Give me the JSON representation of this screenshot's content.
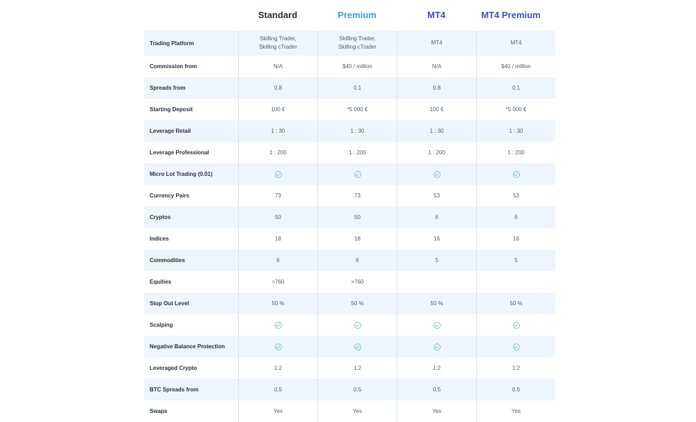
{
  "columns": [
    {
      "label": "Standard",
      "color": "#2b2f3a"
    },
    {
      "label": "Premium",
      "color": "#3a9fd6"
    },
    {
      "label": "MT4",
      "color": "#3b4fc4"
    },
    {
      "label": "MT4 Premium",
      "color": "#3b4fc4"
    }
  ],
  "rows": [
    {
      "label": "Trading Platform",
      "values": [
        "Skilling Trader, Skilling cTrader",
        "Skilling Trader, Skilling cTrader",
        "MT4",
        "MT4"
      ]
    },
    {
      "label": "Commission from",
      "values": [
        "N/A",
        "$40 / million",
        "N/A",
        "$40 / million"
      ]
    },
    {
      "label": "Spreads from",
      "values": [
        "0.8",
        "0.1",
        "0.8",
        "0.1"
      ]
    },
    {
      "label": "Starting Deposit",
      "values": [
        "100 €",
        "*5 000 €",
        "100 €",
        "*5 000 €"
      ]
    },
    {
      "label": "Leverage Retail",
      "values": [
        "1 : 30",
        "1 : 30",
        "1 : 30",
        "1 : 30"
      ]
    },
    {
      "label": "Leverage Professional",
      "values": [
        "1 : 200",
        "1 : 200",
        "1 : 200",
        "1 : 200"
      ]
    },
    {
      "label": "Micro Lot Trading (0.01)",
      "check": [
        true,
        true,
        true,
        true
      ]
    },
    {
      "label": "Currency Pairs",
      "values": [
        "73",
        "73",
        "53",
        "53"
      ]
    },
    {
      "label": "Cryptos",
      "values": [
        "50",
        "50",
        "6",
        "6"
      ]
    },
    {
      "label": "Indices",
      "values": [
        "18",
        "18",
        "16",
        "16"
      ]
    },
    {
      "label": "Commodities",
      "values": [
        "6",
        "6",
        "5",
        "5"
      ]
    },
    {
      "label": "Equities",
      "values": [
        ">760",
        ">760",
        "",
        ""
      ]
    },
    {
      "label": "Stop Out Level",
      "values": [
        "50 %",
        "50 %",
        "50 %",
        "50 %"
      ]
    },
    {
      "label": "Scalping",
      "check": [
        true,
        true,
        true,
        true
      ]
    },
    {
      "label": "Negative Balance Protection",
      "check": [
        true,
        true,
        true,
        true
      ]
    },
    {
      "label": "Leveraged Crypto",
      "values": [
        "1:2",
        "1:2",
        "1:2",
        "1:2"
      ]
    },
    {
      "label": "BTC Spreads from",
      "values": [
        "0.5",
        "0.5",
        "0.5",
        "0.5"
      ]
    },
    {
      "label": "Swaps",
      "values": [
        "Yes",
        "Yes",
        "Yes",
        "Yes"
      ]
    }
  ]
}
